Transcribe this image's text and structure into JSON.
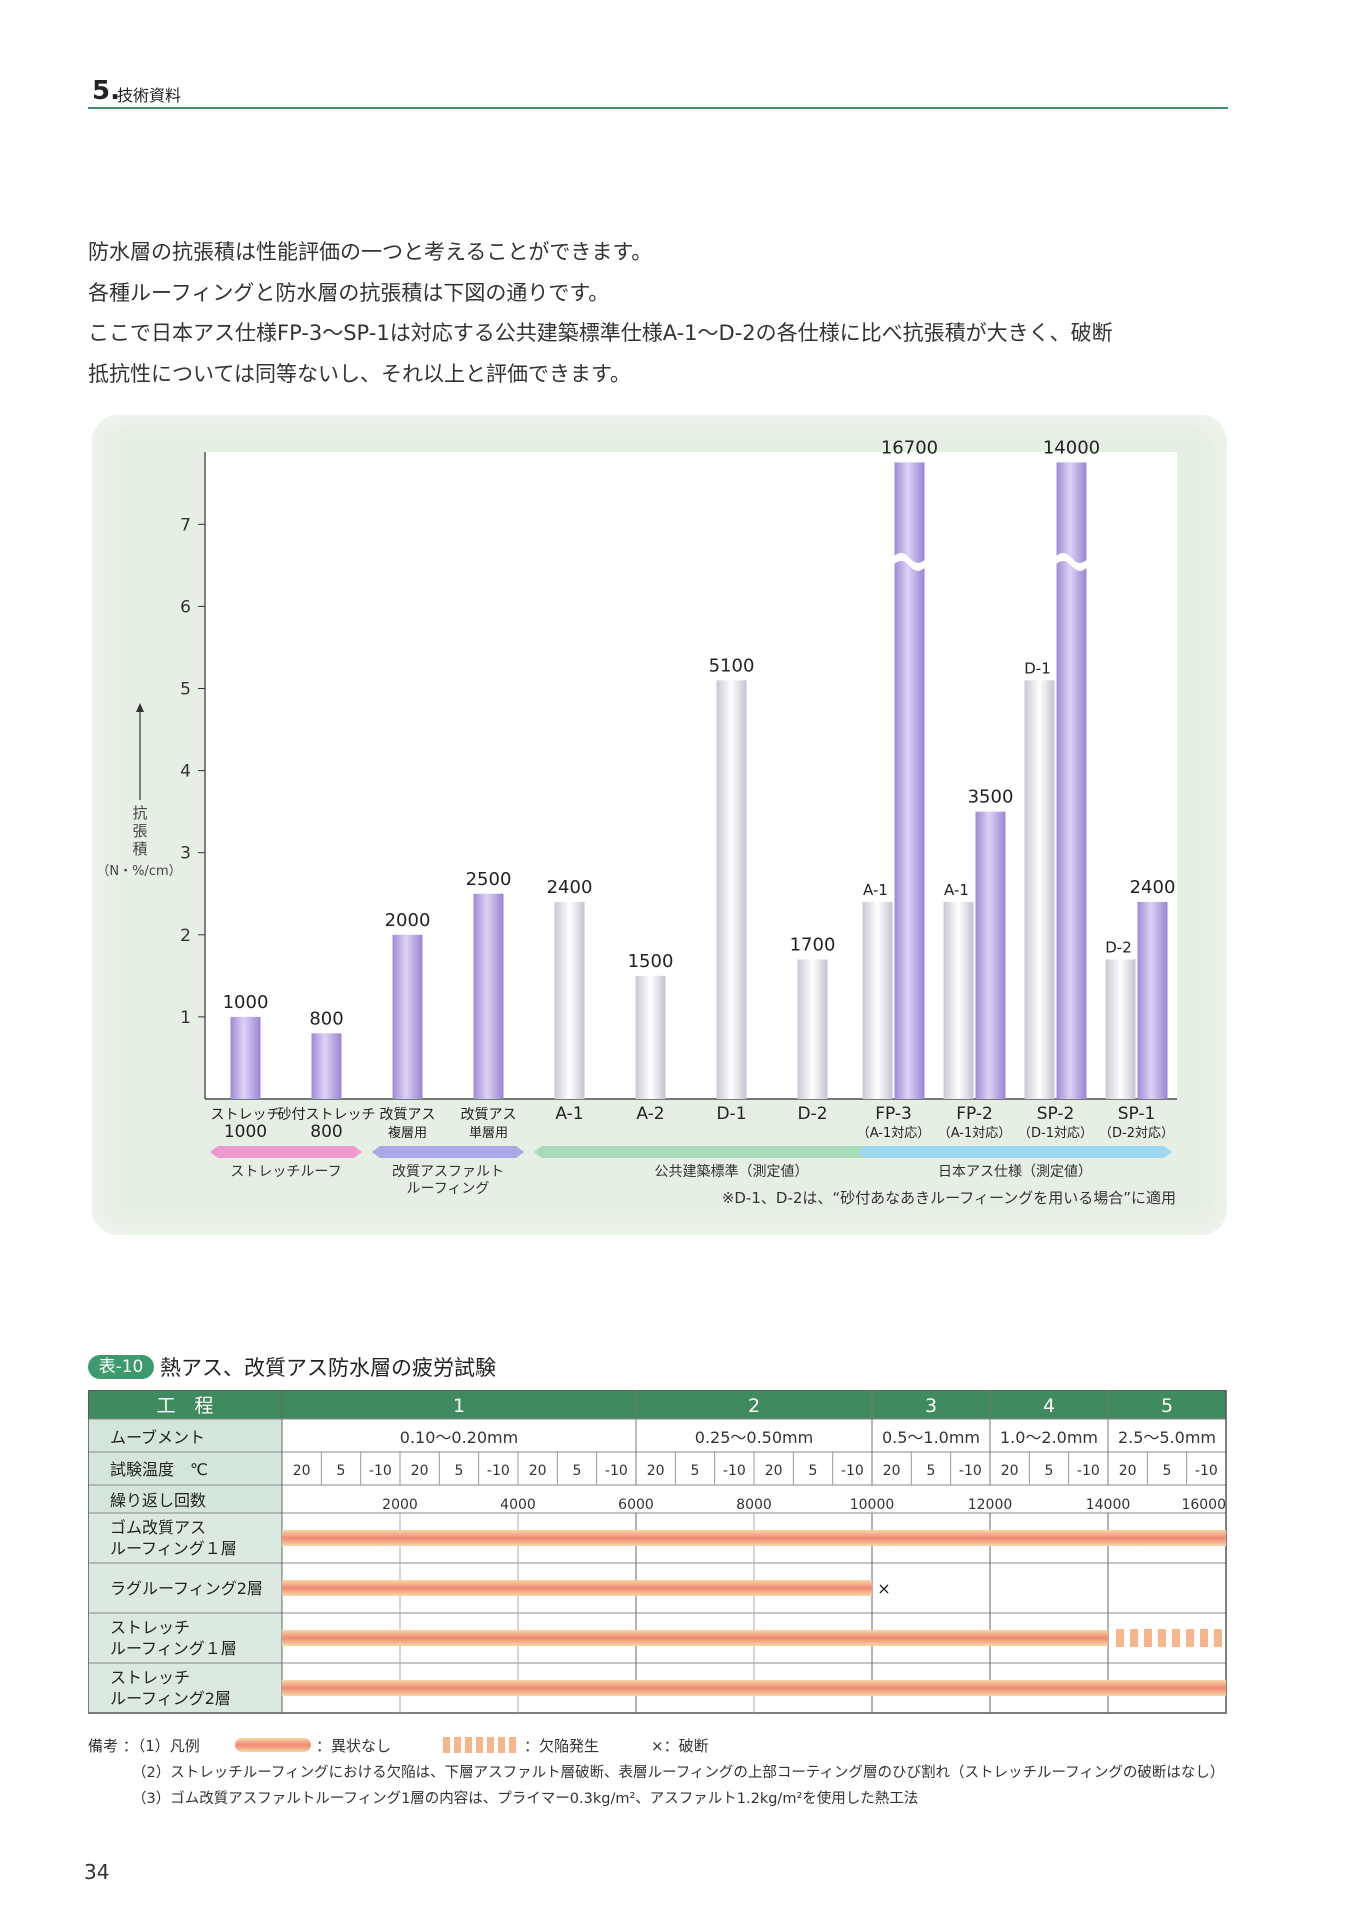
{
  "header": {
    "section_number": "5.",
    "section_title": "技術資料"
  },
  "intro": {
    "lines": [
      "防水層の抗張積は性能評価の一つと考えることができます。",
      "各種ルーフィングと防水層の抗張積は下図の通りです。",
      "ここで日本アス仕様FP-3〜SP-1は対応する公共建築標準仕様A-1〜D-2の各仕様に比べ抗張積が大きく、破断",
      "抵抗性については同等ないし、それ以上と評価できます。"
    ]
  },
  "chart_data": {
    "type": "bar",
    "ylabel": "抗張積（N・%/cm）",
    "ylabel_chars": [
      "抗",
      "張",
      "積"
    ],
    "yunit": "（N・%/cm）",
    "ylim": [
      0,
      7.9
    ],
    "yticks": [
      "1",
      "2",
      "3",
      "4",
      "5",
      "6",
      "7"
    ],
    "note": "※D-1、D-2は、“砂付あなあきルーフィーングを用いる場合”に適用",
    "categories": [
      {
        "line1": "ストレッチ",
        "line2": "1000"
      },
      {
        "line1": "砂付ストレッチ",
        "line2": "800"
      },
      {
        "line1": "改質アス",
        "line2": "複層用"
      },
      {
        "line1": "改質アス",
        "line2": "単層用"
      },
      {
        "line1": "A-1",
        "line2": ""
      },
      {
        "line1": "A-2",
        "line2": ""
      },
      {
        "line1": "D-1",
        "line2": ""
      },
      {
        "line1": "D-2",
        "line2": ""
      },
      {
        "line1": "FP-3",
        "line2": "（A-1対応）"
      },
      {
        "line1": "FP-2",
        "line2": "（A-1対応）"
      },
      {
        "line1": "SP-2",
        "line2": "（D-1対応）"
      },
      {
        "line1": "SP-1",
        "line2": "（D-2対応）"
      }
    ],
    "bars": [
      {
        "cat": 0,
        "value": 1000,
        "label": "1000",
        "color": "purple"
      },
      {
        "cat": 1,
        "value": 800,
        "label": "800",
        "color": "purple"
      },
      {
        "cat": 2,
        "value": 2000,
        "label": "2000",
        "color": "purple"
      },
      {
        "cat": 3,
        "value": 2500,
        "label": "2500",
        "color": "purple"
      },
      {
        "cat": 4,
        "value": 2400,
        "label": "2400",
        "color": "white"
      },
      {
        "cat": 5,
        "value": 1500,
        "label": "1500",
        "color": "white"
      },
      {
        "cat": 6,
        "value": 5100,
        "label": "5100",
        "color": "white"
      },
      {
        "cat": 7,
        "value": 1700,
        "label": "1700",
        "color": "white"
      },
      {
        "cat": 8,
        "value": 2400,
        "label": "A-1",
        "color": "white",
        "pair": "left"
      },
      {
        "cat": 8,
        "value": 16700,
        "label": "16700",
        "color": "purple",
        "pair": "right",
        "broken": true
      },
      {
        "cat": 9,
        "value": 2400,
        "label": "A-1",
        "color": "white",
        "pair": "left"
      },
      {
        "cat": 9,
        "value": 3500,
        "label": "3500",
        "color": "purple",
        "pair": "right"
      },
      {
        "cat": 10,
        "value": 5100,
        "label": "D-1",
        "color": "white",
        "pair": "left"
      },
      {
        "cat": 10,
        "value": 14000,
        "label": "14000",
        "color": "purple",
        "pair": "right",
        "broken": true
      },
      {
        "cat": 11,
        "value": 1700,
        "label": "D-2",
        "color": "white",
        "pair": "left"
      },
      {
        "cat": 11,
        "value": 2400,
        "label": "2400",
        "color": "purple",
        "pair": "right"
      }
    ],
    "groups": [
      {
        "label": "ストレッチルーフ",
        "label2": "",
        "from": 0,
        "to": 1,
        "color": "#ee9ad0"
      },
      {
        "label": "改質アスファルト",
        "label2": "ルーフィング",
        "from": 2,
        "to": 3,
        "color": "#a9a9e6"
      },
      {
        "label": "公共建築標準（測定値）",
        "label2": "",
        "from": 4,
        "to": 8,
        "color": "#a6dcb8"
      },
      {
        "label": "日本アス仕様（測定値）",
        "label2": "",
        "from": 8,
        "to": 11,
        "color": "#9ed8ee"
      }
    ]
  },
  "table": {
    "badge": "表-10",
    "title": "熱アス、改質アス防水層の疲労試験",
    "row_headers": {
      "process": "工　程",
      "movement": "ムーブメント",
      "temp": "試験温度　℃",
      "cycles": "繰り返し回数"
    },
    "processes": [
      {
        "label": "1",
        "movement": "0.10〜0.20mm",
        "temps": [
          "20",
          "5",
          "-10",
          "20",
          "5",
          "-10",
          "20",
          "5",
          "-10"
        ]
      },
      {
        "label": "2",
        "movement": "0.25〜0.50mm",
        "temps": [
          "20",
          "5",
          "-10",
          "20",
          "5",
          "-10"
        ]
      },
      {
        "label": "3",
        "movement": "0.5〜1.0mm",
        "temps": [
          "20",
          "5",
          "-10"
        ]
      },
      {
        "label": "4",
        "movement": "1.0〜2.0mm",
        "temps": [
          "20",
          "5",
          "-10"
        ]
      },
      {
        "label": "5",
        "movement": "2.5〜5.0mm",
        "temps": [
          "20",
          "5",
          "-10"
        ]
      }
    ],
    "cycle_ticks": [
      "2000",
      "4000",
      "6000",
      "8000",
      "10000",
      "12000",
      "14000",
      "16000"
    ],
    "rows": [
      {
        "line1": "ゴム改質アス",
        "line2": "ルーフィング１層",
        "solid_until": 16000,
        "defect_until": 16000,
        "break": false
      },
      {
        "line1": "ラグルーフィング2層",
        "line2": "",
        "solid_until": 10000,
        "defect_until": 10000,
        "break": true
      },
      {
        "line1": "ストレッチ",
        "line2": "ルーフィング１層",
        "solid_until": 14000,
        "defect_until": 16000,
        "break": false
      },
      {
        "line1": "ストレッチ",
        "line2": "ルーフィング2層",
        "solid_until": 16000,
        "defect_until": 16000,
        "break": false
      }
    ],
    "break_symbol": "×",
    "legend": {
      "prefix": "備考 ：（1）凡例",
      "ok": "：異状なし",
      "defect": "：欠陥発生",
      "break": "×：破断"
    },
    "notes": [
      "（2）ストレッチルーフィングにおける欠陥は、下層アスファルト層破断、表層ルーフィングの上部コーティング層のひび割れ（ストレッチルーフィングの破断はなし）",
      "（3）ゴム改質アスファルトルーフィング1層の内容は、プライマー0.3kg/m²、アスファルト1.2kg/m²を使用した熱工法"
    ]
  },
  "page_number": "34"
}
